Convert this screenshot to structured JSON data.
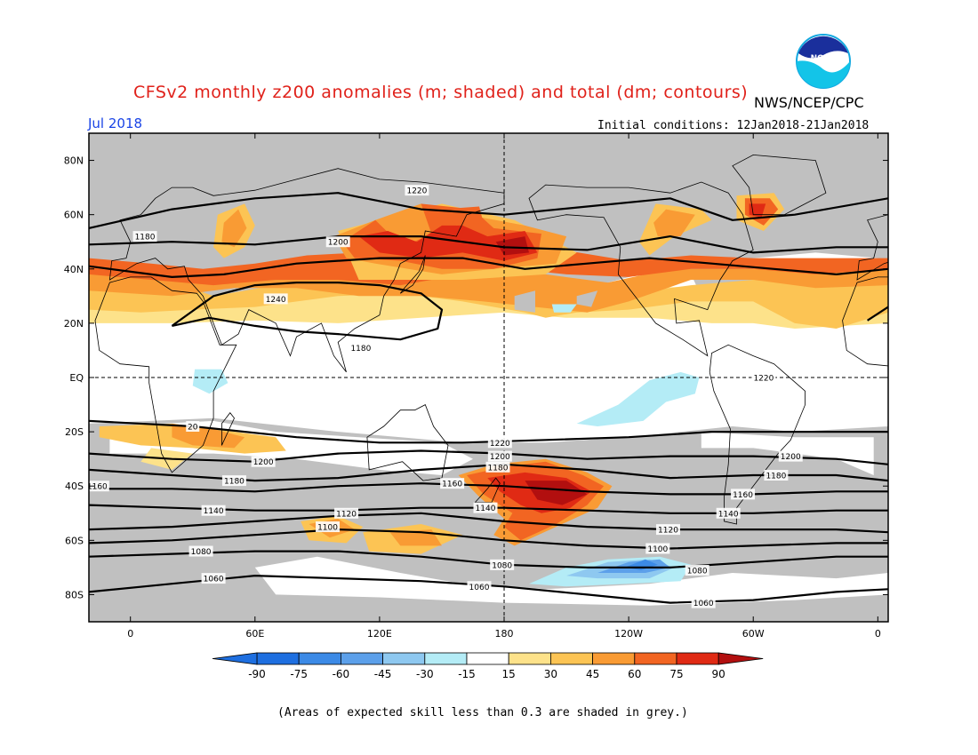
{
  "header": {
    "title": "CFSv2 monthly z200 anomalies (m; shaded) and total (dm; contours)",
    "agency": "NWS/NCEP/CPC",
    "month": "Jul 2018",
    "initial_conditions": "Initial conditions: 12Jan2018-21Jan2018",
    "logo_text": "NOAA"
  },
  "map": {
    "lon_range": [
      -20,
      365
    ],
    "lat_range": [
      -90,
      90
    ],
    "lat_ticks": [
      {
        "lat": 80,
        "label": "80N"
      },
      {
        "lat": 60,
        "label": "60N"
      },
      {
        "lat": 40,
        "label": "40N"
      },
      {
        "lat": 20,
        "label": "20N"
      },
      {
        "lat": 0,
        "label": "EQ"
      },
      {
        "lat": -20,
        "label": "20S"
      },
      {
        "lat": -40,
        "label": "40S"
      },
      {
        "lat": -60,
        "label": "60S"
      },
      {
        "lat": -80,
        "label": "80S"
      }
    ],
    "lon_ticks": [
      {
        "lon": 0,
        "label": "0"
      },
      {
        "lon": 60,
        "label": "60E"
      },
      {
        "lon": 120,
        "label": "120E"
      },
      {
        "lon": 180,
        "label": "180"
      },
      {
        "lon": 240,
        "label": "120W"
      },
      {
        "lon": 300,
        "label": "60W"
      },
      {
        "lon": 360,
        "label": "0"
      }
    ],
    "colors": {
      "grey": "#c0c0c0",
      "neg90": "#1e6fe0",
      "neg75": "#3c8ae6",
      "neg60": "#5ca0ea",
      "neg45": "#8ec8f0",
      "neg30": "#b4ecf6",
      "neutral": "#ffffff",
      "pos15": "#fde28a",
      "pos30": "#fcc454",
      "pos45": "#f99b34",
      "pos60": "#f26522",
      "pos75": "#e02a14",
      "pos90": "#b20f0f"
    }
  },
  "contours": [
    {
      "label": "1180",
      "label_positions": [
        [
          7,
          52
        ]
      ]
    },
    {
      "label": "1180",
      "label_positions": [
        [
          111,
          11
        ],
        [
          127,
          185
        ]
      ]
    },
    {
      "label": "1200",
      "label_positions": [
        [
          100,
          50
        ],
        [
          158,
          137
        ],
        [
          285,
          195
        ]
      ]
    },
    {
      "label": "1220",
      "label_positions": [
        [
          138,
          69
        ],
        [
          243,
          176
        ],
        [
          300,
          148
        ],
        [
          305,
          0
        ]
      ]
    },
    {
      "label": "1240",
      "label_positions": [
        [
          90,
          121
        ]
      ]
    },
    {
      "label": "1240",
      "label_positions": [
        [
          70,
          29
        ]
      ]
    },
    {
      "label": "20",
      "label_positions": [
        [
          30,
          -18
        ]
      ]
    },
    {
      "label": "1220",
      "label_positions": [
        [
          178,
          -24
        ]
      ]
    },
    {
      "label": "1200",
      "label_positions": [
        [
          64,
          -31
        ],
        [
          178,
          -29
        ],
        [
          318,
          -29
        ]
      ]
    },
    {
      "label": "1180",
      "label_positions": [
        [
          50,
          -38
        ],
        [
          177,
          -33
        ],
        [
          311,
          -36
        ]
      ]
    },
    {
      "label": "1160",
      "label_positions": [
        [
          -16,
          -40
        ],
        [
          155,
          -39
        ],
        [
          295,
          -43
        ]
      ]
    },
    {
      "label": "1140",
      "label_positions": [
        [
          40,
          -49
        ],
        [
          171,
          -48
        ],
        [
          288,
          -50
        ]
      ]
    },
    {
      "label": "1120",
      "label_positions": [
        [
          104,
          -50
        ],
        [
          259,
          -56
        ]
      ]
    },
    {
      "label": "1100",
      "label_positions": [
        [
          95,
          -55
        ],
        [
          254,
          -63
        ]
      ]
    },
    {
      "label": "1080",
      "label_positions": [
        [
          34,
          -64
        ],
        [
          179,
          -69
        ],
        [
          273,
          -71
        ]
      ]
    },
    {
      "label": "1060",
      "label_positions": [
        [
          40,
          -74
        ],
        [
          168,
          -77
        ],
        [
          276,
          -83
        ]
      ]
    }
  ],
  "colorbar": {
    "labels": [
      "-90",
      "-75",
      "-60",
      "-45",
      "-30",
      "-15",
      "15",
      "30",
      "45",
      "60",
      "75",
      "90"
    ],
    "colors": [
      "#1e6fe0",
      "#3c8ae6",
      "#5ca0ea",
      "#8ec8f0",
      "#b4ecf6",
      "#ffffff",
      "#fde28a",
      "#fcc454",
      "#f99b34",
      "#f26522",
      "#e02a14"
    ],
    "low_color": "#1e6fe0",
    "high_color": "#b20f0f"
  },
  "footnote": "(Areas of expected skill less than 0.3 are shaded in grey.)"
}
